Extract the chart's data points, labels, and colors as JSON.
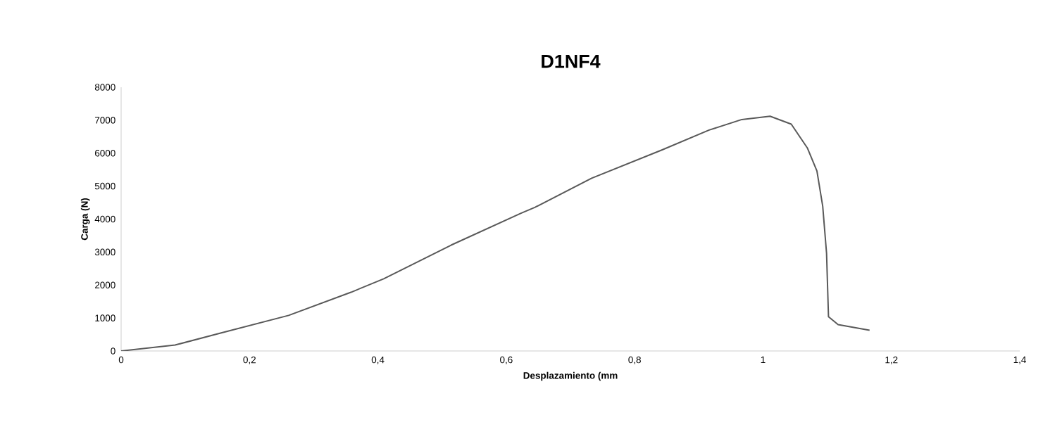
{
  "chart_data": {
    "type": "line",
    "title": "D1NF4",
    "xlabel": "Desplazamiento (mm",
    "ylabel": "Carga (N)",
    "xlim": [
      0,
      1.4
    ],
    "ylim": [
      0,
      8000
    ],
    "xticks": [
      0,
      {
        "value": 0.2,
        "label": "0,2"
      },
      {
        "value": 0.4,
        "label": "0,4"
      },
      {
        "value": 0.6,
        "label": "0,6"
      },
      {
        "value": 0.8,
        "label": "0,8"
      },
      1,
      {
        "value": 1.2,
        "label": "1,2"
      },
      {
        "value": 1.4,
        "label": "1,4"
      }
    ],
    "yticks": [
      0,
      1000,
      2000,
      3000,
      4000,
      5000,
      6000,
      7000,
      8000
    ],
    "grid": false,
    "marker": "none",
    "line_style": "solid",
    "series": [
      {
        "color": "#595959",
        "x": [
          0,
          0.084,
          0.156,
          0.261,
          0.358,
          0.409,
          0.514,
          0.623,
          0.645,
          0.733,
          0.843,
          0.916,
          0.967,
          1.011,
          1.044,
          1.069,
          1.084,
          1.093,
          1.099,
          1.102,
          1.117,
          1.166
        ],
        "values": [
          0,
          180,
          550,
          1080,
          1780,
          2190,
          3210,
          4180,
          4360,
          5240,
          6100,
          6700,
          7020,
          7120,
          6880,
          6160,
          5460,
          4390,
          2960,
          1040,
          800,
          630
        ]
      }
    ]
  }
}
